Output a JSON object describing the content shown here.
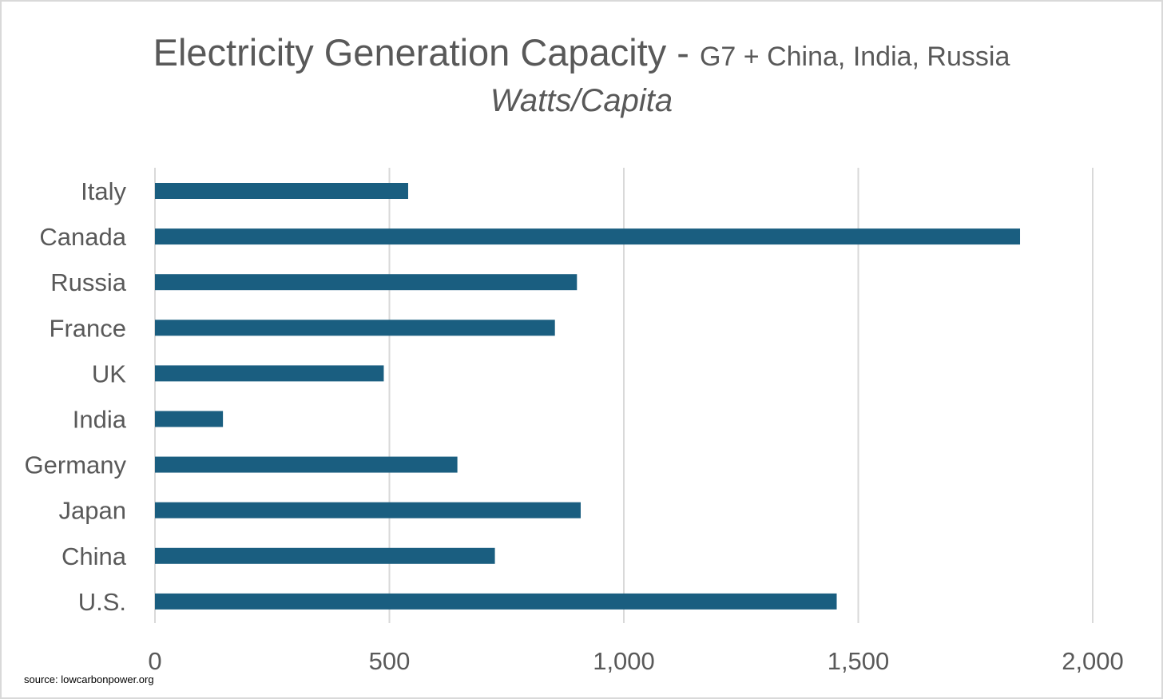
{
  "chart_data": {
    "type": "bar",
    "orientation": "horizontal",
    "title": "Electricity Generation Capacity - ",
    "title_suffix": "G7 + China, India, Russia",
    "subtitle": "Watts/Capita",
    "categories": [
      "Italy",
      "Canada",
      "Russia",
      "France",
      "UK",
      "India",
      "Germany",
      "Japan",
      "China",
      "U.S."
    ],
    "values": [
      540,
      1845,
      900,
      853,
      488,
      145,
      645,
      908,
      725,
      1454
    ],
    "xlim": [
      0,
      2000
    ],
    "xticks": [
      0,
      500,
      1000,
      1500,
      2000
    ],
    "xtick_labels": [
      "0",
      "500",
      "1,000",
      "1,500",
      "2,000"
    ],
    "xlabel": "",
    "ylabel": "",
    "grid": "vertical",
    "legend": "none",
    "bar_color": "#1a5e80",
    "grid_color": "#d9d9d9"
  },
  "source": "source: lowcarbonpower.org"
}
